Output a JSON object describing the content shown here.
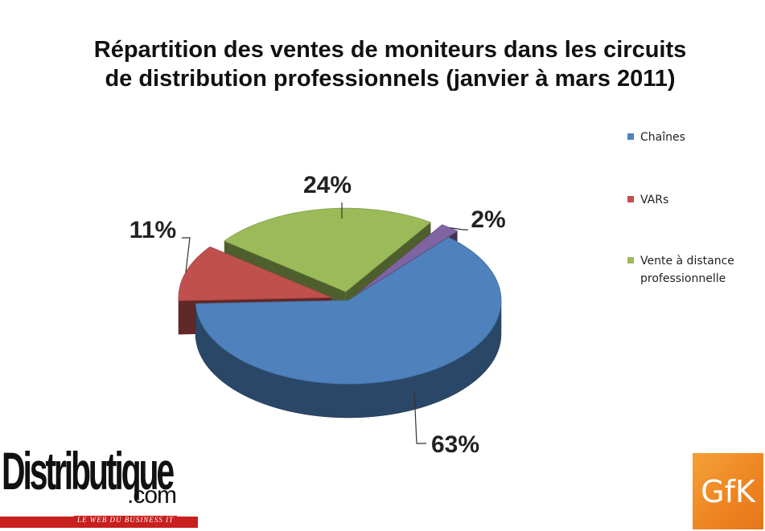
{
  "title_line1": "Répartition des ventes de moniteurs dans les circuits",
  "title_line2": "de distribution professionnels (janvier à mars 2011)",
  "chart_data": {
    "type": "pie",
    "title": "Répartition des ventes de moniteurs dans les circuits de distribution professionnels (janvier à mars 2011)",
    "series": [
      {
        "name": "Chaînes",
        "value": 63,
        "label": "63%",
        "color": "#4f81bd"
      },
      {
        "name": "VARs",
        "value": 11,
        "label": "11%",
        "color": "#c0504d"
      },
      {
        "name": "Vente à distance professionnelle",
        "value": 24,
        "label": "24%",
        "color": "#9bbb59"
      },
      {
        "name": "",
        "value": 2,
        "label": "2%",
        "color": "#8064a2"
      }
    ],
    "legend_placement": "right",
    "exploded": true,
    "three_d": true
  },
  "legend": [
    {
      "label": "Chaînes",
      "color": "#4f81bd"
    },
    {
      "label": "VARs",
      "color": "#c0504d"
    },
    {
      "label": "Vente à distance professionnelle",
      "color": "#9bbb59"
    }
  ],
  "logos": {
    "distributique": {
      "word": "Distributique",
      "dotcom": ".com",
      "tagline": "LE WEB DU BUSINESS IT"
    },
    "gfk": {
      "text": "GfK",
      "color": "#ee8420"
    }
  }
}
